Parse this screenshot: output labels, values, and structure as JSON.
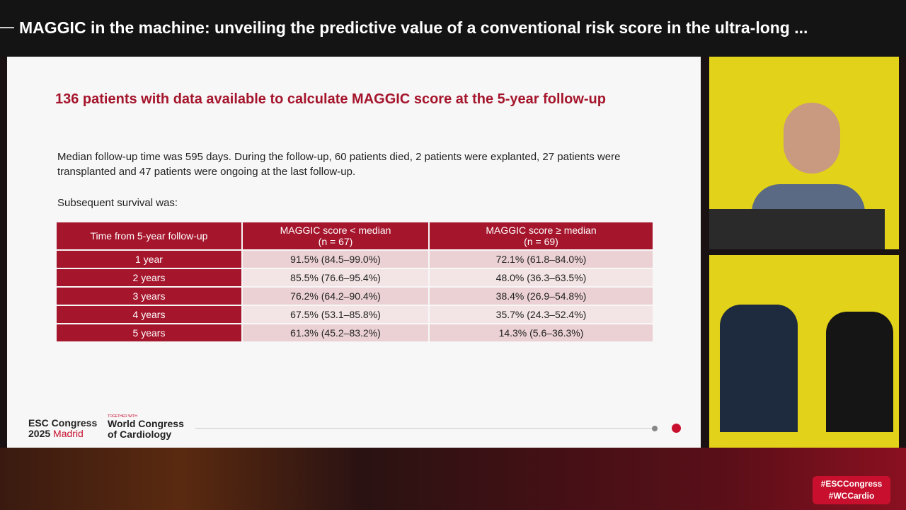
{
  "header": {
    "title": "MAGGIC in the machine: unveiling the predictive value of a conventional risk score in the ultra-long ..."
  },
  "slide": {
    "title": "136 patients with data available to calculate MAGGIC score at the 5-year follow-up",
    "paragraph": "Median follow-up time was 595 days. During the follow-up, 60 patients died, 2 patients were explanted, 27 patients were transplanted and 47 patients were ongoing at the last follow-up.",
    "subheading": "Subsequent survival was:",
    "table": {
      "columns": [
        [
          "Time from 5-year follow-up"
        ],
        [
          "MAGGIC score < median",
          "(n = 67)"
        ],
        [
          "MAGGIC score ≥ median",
          "(n = 69)"
        ]
      ],
      "rows": [
        [
          "1 year",
          "91.5% (84.5–99.0%)",
          "72.1% (61.8–84.0%)"
        ],
        [
          "2 years",
          "85.5% (76.6–95.4%)",
          "48.0% (36.3–63.5%)"
        ],
        [
          "3 years",
          "76.2% (64.2–90.4%)",
          "38.4% (26.9–54.8%)"
        ],
        [
          "4 years",
          "67.5% (53.1–85.8%)",
          "35.7% (24.3–52.4%)"
        ],
        [
          "5 years",
          "61.3% (45.2–83.2%)",
          "14.3% (5.6–36.3%)"
        ]
      ]
    },
    "logo": {
      "line1": "ESC Congress",
      "year": "2025",
      "city": "Madrid",
      "together": "TOGETHER WITH",
      "wcc1": "World Congress",
      "wcc2": "of Cardiology"
    }
  },
  "hashtags": [
    "#ESCCongress",
    "#WCCardio"
  ]
}
